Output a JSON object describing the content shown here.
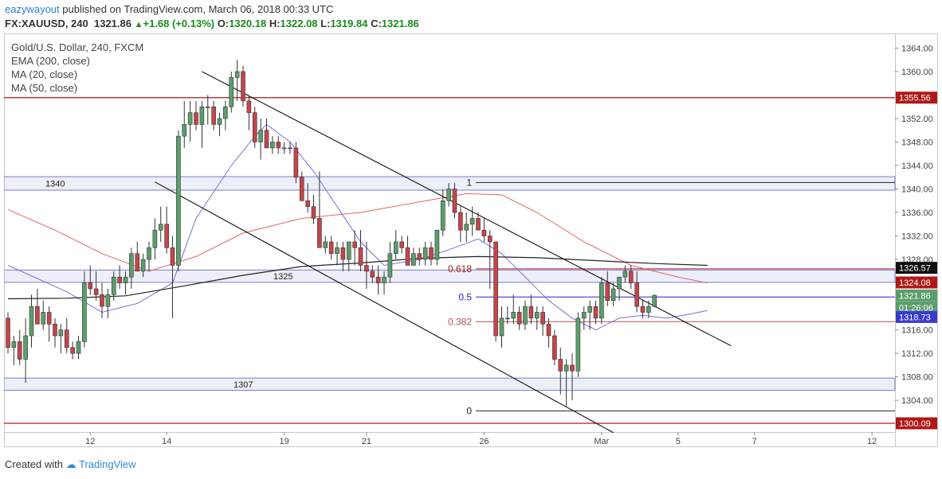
{
  "header": {
    "author": "eazywayout",
    "published_text": " published on TradingView.com, March 06, 2018 00:33 UTC",
    "symbol": "FX:XAUUSD, 240",
    "last": "1321.86",
    "change": "+1.68 (+0.13%)",
    "o_label": "O:",
    "o_value": "1320.18",
    "h_label": "H:",
    "h_value": "1322.08",
    "l_label": "L:",
    "l_value": "1319.84",
    "c_label": "C:",
    "c_value": "1321.86"
  },
  "legend": {
    "title": "Gold/U.S. Dollar, 240, FXCM",
    "ema200": "EMA (200, close)",
    "ma20": "MA (20, close)",
    "ma50": "MA (50, close)"
  },
  "footer": {
    "created_with": "Created with",
    "brand": "TradingView"
  },
  "colors": {
    "up": "#5b9e6c",
    "down": "#c4454a",
    "ma20": "#7b6ee0",
    "ma50": "#e06666",
    "ema200": "#222222",
    "hline": "#b01818",
    "zone_fill": "#eceef8",
    "zone_border": "#7a7ec4"
  },
  "chart_data": {
    "type": "candlestick",
    "title": "Gold/U.S. Dollar, 240, FXCM",
    "ylim": [
      1298.6,
      1366.5
    ],
    "y_ticks": [
      1304,
      1308,
      1312,
      1316,
      1320,
      1324,
      1328,
      1332,
      1336,
      1340,
      1344,
      1348,
      1352,
      1356,
      1360,
      1364
    ],
    "x_ticks": [
      {
        "label": "12",
        "bar": 14
      },
      {
        "label": "14",
        "bar": 27
      },
      {
        "label": "19",
        "bar": 47
      },
      {
        "label": "21",
        "bar": 61
      },
      {
        "label": "26",
        "bar": 81
      },
      {
        "label": "Mar",
        "bar": 101
      },
      {
        "label": "5",
        "bar": 114
      },
      {
        "label": "7",
        "bar": 127
      },
      {
        "label": "12",
        "bar": 147
      }
    ],
    "candles": [
      [
        1318,
        1319,
        1312,
        1313
      ],
      [
        1313,
        1315,
        1310,
        1314
      ],
      [
        1314,
        1316,
        1310,
        1311
      ],
      [
        1311,
        1318,
        1307,
        1315
      ],
      [
        1315,
        1322,
        1313,
        1320
      ],
      [
        1320,
        1323,
        1317,
        1317
      ],
      [
        1317,
        1321,
        1316,
        1319
      ],
      [
        1319,
        1320,
        1314,
        1317
      ],
      [
        1317,
        1318,
        1313,
        1315
      ],
      [
        1315,
        1317,
        1312,
        1316
      ],
      [
        1316,
        1318,
        1312,
        1313
      ],
      [
        1313,
        1314,
        1311,
        1312
      ],
      [
        1312,
        1315,
        1311,
        1314
      ],
      [
        1314,
        1326,
        1313,
        1324
      ],
      [
        1324,
        1327,
        1322,
        1323
      ],
      [
        1323,
        1326,
        1321,
        1322
      ],
      [
        1322,
        1324,
        1318,
        1320
      ],
      [
        1320,
        1323,
        1318,
        1322
      ],
      [
        1322,
        1326,
        1321,
        1325
      ],
      [
        1325,
        1327,
        1323,
        1324
      ],
      [
        1324,
        1326,
        1322,
        1325
      ],
      [
        1325,
        1330,
        1323,
        1329
      ],
      [
        1329,
        1331,
        1326,
        1326
      ],
      [
        1326,
        1329,
        1325,
        1328
      ],
      [
        1328,
        1331,
        1326,
        1330
      ],
      [
        1330,
        1335,
        1328,
        1333
      ],
      [
        1333,
        1337,
        1331,
        1334
      ],
      [
        1334,
        1337,
        1329,
        1330
      ],
      [
        1330,
        1332,
        1318,
        1327
      ],
      [
        1327,
        1350,
        1326,
        1349
      ],
      [
        1349,
        1355,
        1347,
        1351
      ],
      [
        1351,
        1355,
        1348,
        1353
      ],
      [
        1353,
        1355,
        1350,
        1351
      ],
      [
        1351,
        1355,
        1347,
        1354
      ],
      [
        1354,
        1356,
        1351,
        1354
      ],
      [
        1354,
        1355,
        1350,
        1351
      ],
      [
        1351,
        1353,
        1349,
        1352
      ],
      [
        1352,
        1355,
        1350,
        1354
      ],
      [
        1354,
        1360,
        1353,
        1359
      ],
      [
        1359,
        1362,
        1355,
        1360
      ],
      [
        1360,
        1361,
        1354,
        1355
      ],
      [
        1355,
        1356,
        1350,
        1353
      ],
      [
        1353,
        1354,
        1347,
        1348
      ],
      [
        1348,
        1352,
        1345,
        1350
      ],
      [
        1350,
        1352,
        1347,
        1347
      ],
      [
        1347,
        1349,
        1346,
        1348
      ],
      [
        1348,
        1349,
        1346,
        1347
      ],
      [
        1347,
        1348,
        1346,
        1347
      ],
      [
        1347,
        1348,
        1346,
        1347
      ],
      [
        1347,
        1348,
        1341,
        1342
      ],
      [
        1342,
        1343,
        1338,
        1338
      ],
      [
        1338,
        1341,
        1336,
        1337
      ],
      [
        1337,
        1339,
        1334,
        1335
      ],
      [
        1335,
        1343,
        1330,
        1330
      ],
      [
        1330,
        1332,
        1329,
        1331
      ],
      [
        1331,
        1332,
        1328,
        1329
      ],
      [
        1329,
        1331,
        1327,
        1330
      ],
      [
        1330,
        1331,
        1326,
        1328
      ],
      [
        1328,
        1331,
        1326,
        1331
      ],
      [
        1331,
        1333,
        1327,
        1330
      ],
      [
        1330,
        1333,
        1326,
        1327
      ],
      [
        1327,
        1331,
        1323,
        1326
      ],
      [
        1326,
        1327,
        1324,
        1325
      ],
      [
        1325,
        1327,
        1322,
        1324
      ],
      [
        1324,
        1326,
        1322,
        1325
      ],
      [
        1325,
        1331,
        1324,
        1329
      ],
      [
        1329,
        1333,
        1328,
        1331
      ],
      [
        1331,
        1332,
        1329,
        1330
      ],
      [
        1330,
        1332,
        1327,
        1327
      ],
      [
        1327,
        1330,
        1327,
        1329
      ],
      [
        1329,
        1330,
        1327,
        1328
      ],
      [
        1328,
        1331,
        1327,
        1330
      ],
      [
        1330,
        1331,
        1327,
        1328
      ],
      [
        1328,
        1333,
        1327,
        1333
      ],
      [
        1333,
        1340,
        1332,
        1338
      ],
      [
        1338,
        1341,
        1337,
        1340
      ],
      [
        1340,
        1341,
        1335,
        1336
      ],
      [
        1336,
        1337,
        1331,
        1333
      ],
      [
        1333,
        1336,
        1331,
        1334
      ],
      [
        1334,
        1337,
        1332,
        1335
      ],
      [
        1335,
        1336,
        1333,
        1333
      ],
      [
        1333,
        1335,
        1331,
        1332
      ],
      [
        1332,
        1333,
        1323,
        1331
      ],
      [
        1331,
        1331,
        1314,
        1315
      ],
      [
        1315,
        1320,
        1313,
        1318
      ],
      [
        1318,
        1320,
        1317,
        1318
      ],
      [
        1318,
        1322,
        1317,
        1319
      ],
      [
        1319,
        1320,
        1316,
        1317
      ],
      [
        1317,
        1321,
        1316,
        1320
      ],
      [
        1320,
        1322,
        1317,
        1318
      ],
      [
        1318,
        1320,
        1316,
        1319
      ],
      [
        1319,
        1320,
        1315,
        1317
      ],
      [
        1317,
        1318,
        1313,
        1315
      ],
      [
        1315,
        1316,
        1310,
        1311
      ],
      [
        1311,
        1313,
        1305,
        1309
      ],
      [
        1309,
        1311,
        1303,
        1310
      ],
      [
        1310,
        1312,
        1304,
        1309
      ],
      [
        1309,
        1319,
        1308,
        1318
      ],
      [
        1318,
        1320,
        1316,
        1319
      ],
      [
        1319,
        1321,
        1316,
        1320
      ],
      [
        1320,
        1321,
        1317,
        1318
      ],
      [
        1318,
        1325,
        1317,
        1324
      ],
      [
        1324,
        1326,
        1320,
        1321
      ],
      [
        1321,
        1324,
        1320,
        1323
      ],
      [
        1323,
        1325,
        1321,
        1325
      ],
      [
        1325,
        1327,
        1324,
        1326
      ],
      [
        1326,
        1327,
        1323,
        1324
      ],
      [
        1324,
        1326,
        1319,
        1320
      ],
      [
        1320,
        1321,
        1318,
        1319
      ],
      [
        1319,
        1321,
        1318,
        1320
      ],
      [
        1320,
        1322.08,
        1319.84,
        1321.86
      ]
    ],
    "indicators": {
      "ema200": [
        [
          0,
          1321.3
        ],
        [
          10,
          1321.4
        ],
        [
          20,
          1321.8
        ],
        [
          30,
          1323.5
        ],
        [
          40,
          1325.3
        ],
        [
          50,
          1326.8
        ],
        [
          60,
          1327.4
        ],
        [
          70,
          1328.2
        ],
        [
          80,
          1328.5
        ],
        [
          90,
          1328.3
        ],
        [
          100,
          1327.8
        ],
        [
          110,
          1327.3
        ],
        [
          119,
          1327.0
        ]
      ],
      "ma50": [
        [
          0,
          1336.5
        ],
        [
          8,
          1333
        ],
        [
          16,
          1329
        ],
        [
          24,
          1326
        ],
        [
          32,
          1328.5
        ],
        [
          40,
          1332.5
        ],
        [
          50,
          1335
        ],
        [
          60,
          1336
        ],
        [
          70,
          1337.8
        ],
        [
          78,
          1339.2
        ],
        [
          84,
          1339
        ],
        [
          90,
          1336
        ],
        [
          98,
          1331
        ],
        [
          106,
          1327
        ],
        [
          114,
          1325
        ],
        [
          119,
          1324
        ]
      ],
      "ma20": [
        [
          0,
          1327
        ],
        [
          10,
          1322.5
        ],
        [
          16,
          1319
        ],
        [
          22,
          1320.5
        ],
        [
          28,
          1324
        ],
        [
          32,
          1335
        ],
        [
          38,
          1344
        ],
        [
          42,
          1349
        ],
        [
          44,
          1351
        ],
        [
          48,
          1348
        ],
        [
          52,
          1343
        ],
        [
          56,
          1337
        ],
        [
          60,
          1331
        ],
        [
          64,
          1327
        ],
        [
          70,
          1328
        ],
        [
          76,
          1330
        ],
        [
          80,
          1331.5
        ],
        [
          84,
          1329
        ],
        [
          88,
          1325
        ],
        [
          92,
          1321
        ],
        [
          96,
          1318
        ],
        [
          100,
          1316
        ],
        [
          104,
          1318
        ],
        [
          108,
          1318.5
        ],
        [
          112,
          1318
        ],
        [
          116,
          1318.7
        ],
        [
          119,
          1319.3
        ]
      ]
    },
    "channel_upper": [
      [
        33,
        1360.0
      ],
      [
        123,
        1313.3
      ]
    ],
    "channel_lower": [
      [
        25,
        1341.2
      ],
      [
        103,
        1298.5
      ]
    ],
    "horizontal_lines": [
      1355.56,
      1300.09
    ],
    "zones": [
      {
        "label": "1340",
        "top": 1342.1,
        "bottom": 1339.8
      },
      {
        "label": "1325",
        "top": 1326.2,
        "bottom": 1324.1
      },
      {
        "label": "1307",
        "top": 1307.8,
        "bottom": 1305.7
      }
    ],
    "fibonacci": [
      {
        "label": "1",
        "value": 1341.1,
        "color": "#222222"
      },
      {
        "label": "0.618",
        "value": 1326.4,
        "color": "#b01818"
      },
      {
        "label": "0.5",
        "value": 1321.6,
        "color": "#2626c8"
      },
      {
        "label": "0.382",
        "value": 1317.4,
        "color": "#b05050"
      },
      {
        "label": "0",
        "value": 1302.2,
        "color": "#222222"
      }
    ],
    "price_tags": [
      {
        "label": "1355.56",
        "value": 1355.56,
        "bg": "#b01818",
        "fg": "#ffffff"
      },
      {
        "label": "1326.57",
        "value": 1326.57,
        "bg": "#111111",
        "fg": "#ffffff"
      },
      {
        "label": "1324.08",
        "value": 1324.08,
        "bg": "#b01818",
        "fg": "#ffffff"
      },
      {
        "label": "1321.86",
        "value": 1321.86,
        "bg": "#5b9e6c",
        "fg": "#ffffff"
      },
      {
        "label": "01:26:06",
        "value": 1319.8,
        "bg": "#5b9e6c",
        "fg": "#ffffff"
      },
      {
        "label": "1318.73",
        "value": 1318.2,
        "bg": "#3a3ad0",
        "fg": "#ffffff"
      },
      {
        "label": "1300.09",
        "value": 1300.09,
        "bg": "#b01818",
        "fg": "#ffffff"
      }
    ]
  }
}
